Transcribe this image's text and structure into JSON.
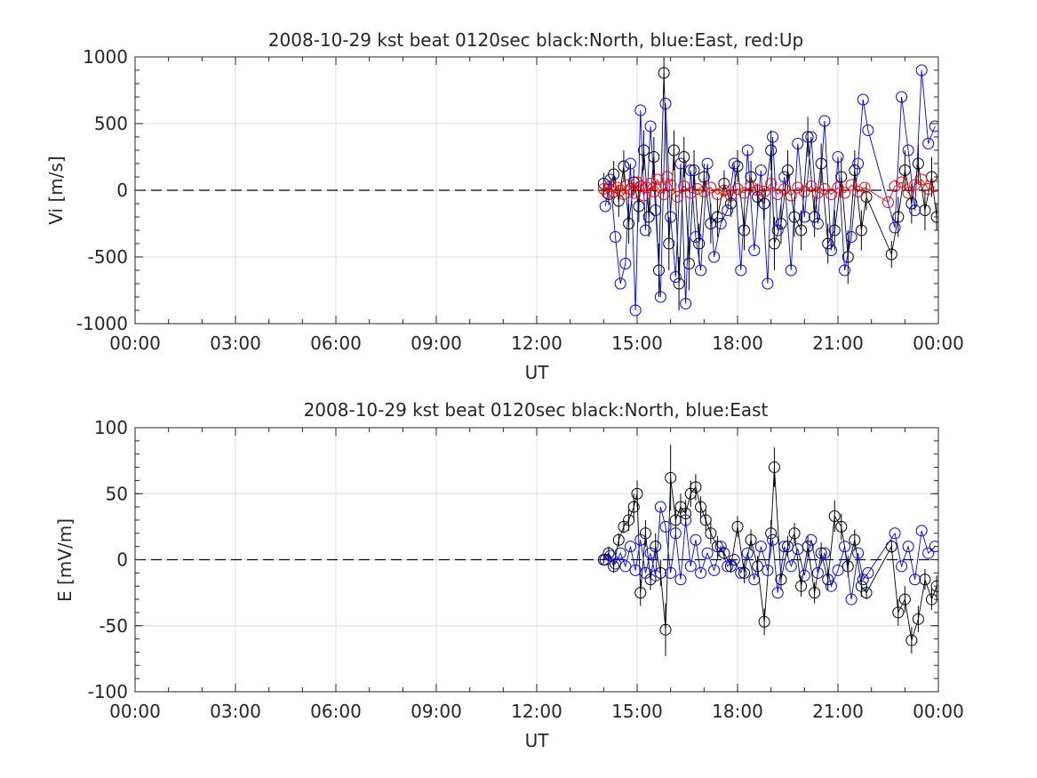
{
  "chart_data": [
    {
      "type": "scatter",
      "title": "2008-10-29 kst beat 0120sec black:North, blue:East, red:Up",
      "xlabel": "UT",
      "ylabel": "Vi [m/s]",
      "xlim": [
        0,
        24
      ],
      "ylim": [
        -1000,
        1000
      ],
      "xticks": [
        "00:00",
        "03:00",
        "06:00",
        "09:00",
        "12:00",
        "15:00",
        "18:00",
        "21:00",
        "00:00"
      ],
      "yticks": [
        "1000",
        "500",
        "0",
        "-500",
        "-1000"
      ],
      "grid": true,
      "reference_line": 0,
      "series": [
        {
          "color": "#000000",
          "x": [
            14.0,
            14.15,
            14.3,
            14.45,
            14.6,
            14.75,
            14.9,
            15.05,
            15.2,
            15.35,
            15.5,
            15.65,
            15.8,
            15.95,
            16.1,
            16.25,
            16.4,
            16.55,
            16.7,
            16.85,
            17.0,
            17.2,
            17.4,
            17.6,
            17.8,
            18.0,
            18.2,
            18.4,
            18.6,
            18.8,
            19.0,
            19.1,
            19.3,
            19.5,
            19.7,
            19.9,
            20.1,
            20.3,
            20.5,
            20.7,
            20.9,
            21.1,
            21.3,
            21.5,
            21.7,
            21.85,
            22.6,
            22.8,
            23.0,
            23.2,
            23.4,
            23.6,
            23.8,
            23.95
          ],
          "y": [
            50,
            -30,
            120,
            -80,
            180,
            -250,
            60,
            -120,
            300,
            -200,
            250,
            -600,
            880,
            -400,
            300,
            -700,
            250,
            -550,
            150,
            -400,
            100,
            -250,
            -200,
            50,
            -100,
            180,
            -300,
            100,
            -50,
            -100,
            300,
            -400,
            -250,
            150,
            -200,
            -300,
            400,
            -200,
            200,
            -400,
            -300,
            100,
            -500,
            150,
            -300,
            -50,
            -480,
            -200,
            150,
            -100,
            200,
            -150,
            100,
            -200
          ],
          "err": [
            80,
            80,
            100,
            120,
            120,
            150,
            100,
            120,
            150,
            150,
            150,
            200,
            150,
            200,
            150,
            200,
            150,
            200,
            150,
            150,
            100,
            150,
            150,
            100,
            100,
            120,
            150,
            120,
            100,
            120,
            150,
            200,
            150,
            150,
            150,
            150,
            150,
            150,
            150,
            150,
            150,
            150,
            200,
            150,
            150,
            100,
            100,
            150,
            150,
            150,
            150,
            150,
            150,
            100
          ]
        },
        {
          "color": "#0000ff",
          "x": [
            14.05,
            14.2,
            14.35,
            14.5,
            14.65,
            14.8,
            14.95,
            15.1,
            15.25,
            15.4,
            15.55,
            15.7,
            15.85,
            16.0,
            16.15,
            16.3,
            16.45,
            16.6,
            16.75,
            16.9,
            17.1,
            17.3,
            17.5,
            17.7,
            17.9,
            18.1,
            18.3,
            18.5,
            18.7,
            18.9,
            19.05,
            19.2,
            19.4,
            19.6,
            19.8,
            20.0,
            20.2,
            20.4,
            20.6,
            20.8,
            21.0,
            21.2,
            21.4,
            21.6,
            21.75,
            21.9,
            22.7,
            22.9,
            23.1,
            23.3,
            23.5,
            23.7,
            23.9
          ],
          "y": [
            -120,
            80,
            -350,
            -700,
            -550,
            200,
            -900,
            600,
            -300,
            480,
            -150,
            -800,
            650,
            -200,
            -650,
            200,
            -850,
            150,
            -350,
            -600,
            200,
            -500,
            -250,
            -150,
            200,
            -600,
            300,
            -450,
            150,
            -700,
            400,
            -300,
            100,
            -600,
            350,
            -200,
            400,
            -250,
            520,
            -450,
            250,
            -600,
            -350,
            200,
            680,
            450,
            -280,
            700,
            300,
            -150,
            900,
            350,
            480
          ]
        },
        {
          "color": "#ff0000",
          "x": [
            14.0,
            14.1,
            14.2,
            14.3,
            14.4,
            14.5,
            14.6,
            14.7,
            14.8,
            14.9,
            15.0,
            15.1,
            15.2,
            15.3,
            15.4,
            15.5,
            15.6,
            15.7,
            15.8,
            15.9,
            16.0,
            16.2,
            16.4,
            16.6,
            16.8,
            17.0,
            17.2,
            17.4,
            17.6,
            17.8,
            18.0,
            18.2,
            18.4,
            18.6,
            18.8,
            19.0,
            19.2,
            19.4,
            19.6,
            19.8,
            20.0,
            20.2,
            20.4,
            20.6,
            20.8,
            21.0,
            21.2,
            21.4,
            21.6,
            21.8,
            22.5,
            22.7,
            22.9,
            23.1,
            23.3,
            23.5,
            23.7,
            23.9
          ],
          "y": [
            10,
            -20,
            30,
            -10,
            20,
            0,
            -30,
            40,
            10,
            -20,
            60,
            30,
            -40,
            20,
            50,
            -10,
            80,
            20,
            -30,
            100,
            40,
            -50,
            30,
            -20,
            10,
            -10,
            20,
            -30,
            0,
            -40,
            10,
            -20,
            30,
            0,
            -10,
            50,
            -30,
            10,
            -40,
            20,
            -10,
            30,
            -20,
            10,
            -30,
            20,
            -20,
            40,
            -10,
            20,
            -90,
            30,
            60,
            -20,
            40,
            80,
            10,
            30
          ]
        }
      ]
    },
    {
      "type": "scatter",
      "title": "2008-10-29 kst beat 0120sec black:North, blue:East",
      "xlabel": "UT",
      "ylabel": "E [mV/m]",
      "xlim": [
        0,
        24
      ],
      "ylim": [
        -100,
        100
      ],
      "xticks": [
        "00:00",
        "03:00",
        "06:00",
        "09:00",
        "12:00",
        "15:00",
        "18:00",
        "21:00",
        "00:00"
      ],
      "yticks": [
        "100",
        "50",
        "0",
        "-50",
        "-100"
      ],
      "grid": true,
      "reference_line": 0,
      "series": [
        {
          "color": "#000000",
          "x": [
            14.0,
            14.15,
            14.3,
            14.45,
            14.6,
            14.75,
            14.9,
            15.0,
            15.1,
            15.25,
            15.4,
            15.55,
            15.7,
            15.85,
            16.0,
            16.15,
            16.3,
            16.45,
            16.6,
            16.75,
            16.9,
            17.05,
            17.2,
            17.4,
            17.6,
            17.8,
            18.0,
            18.2,
            18.4,
            18.6,
            18.8,
            19.0,
            19.1,
            19.3,
            19.5,
            19.7,
            19.9,
            20.1,
            20.3,
            20.5,
            20.7,
            20.9,
            21.1,
            21.3,
            21.5,
            21.7,
            21.85,
            22.6,
            22.8,
            23.0,
            23.2,
            23.4,
            23.6,
            23.8,
            23.95
          ],
          "y": [
            0,
            5,
            -5,
            15,
            25,
            30,
            40,
            50,
            -25,
            20,
            -15,
            10,
            -10,
            -53,
            62,
            30,
            40,
            35,
            50,
            55,
            40,
            30,
            20,
            10,
            5,
            -5,
            25,
            -10,
            15,
            -5,
            -47,
            20,
            70,
            -15,
            10,
            20,
            -20,
            10,
            -25,
            5,
            -15,
            33,
            25,
            -5,
            15,
            -20,
            -25,
            10,
            -40,
            -30,
            -61,
            -45,
            -15,
            -30,
            -20
          ],
          "err": [
            3,
            5,
            5,
            5,
            5,
            8,
            10,
            10,
            10,
            10,
            8,
            10,
            10,
            20,
            25,
            10,
            10,
            10,
            10,
            10,
            8,
            8,
            8,
            8,
            5,
            5,
            8,
            8,
            8,
            8,
            10,
            10,
            15,
            8,
            8,
            8,
            8,
            8,
            8,
            8,
            8,
            12,
            10,
            8,
            8,
            8,
            5,
            5,
            10,
            10,
            10,
            10,
            8,
            8,
            8
          ]
        },
        {
          "color": "#0000ff",
          "x": [
            14.05,
            14.2,
            14.35,
            14.5,
            14.65,
            14.8,
            14.95,
            15.1,
            15.25,
            15.4,
            15.55,
            15.7,
            15.85,
            16.0,
            16.15,
            16.3,
            16.45,
            16.6,
            16.75,
            16.9,
            17.1,
            17.3,
            17.5,
            17.7,
            17.9,
            18.1,
            18.3,
            18.5,
            18.7,
            18.9,
            19.05,
            19.2,
            19.4,
            19.6,
            19.8,
            20.0,
            20.2,
            20.4,
            20.6,
            20.8,
            21.0,
            21.2,
            21.4,
            21.6,
            21.75,
            21.9,
            22.7,
            22.9,
            23.1,
            23.3,
            23.5,
            23.7,
            23.9
          ],
          "y": [
            0,
            3,
            -3,
            5,
            -5,
            10,
            -8,
            15,
            -10,
            5,
            -12,
            40,
            25,
            -10,
            20,
            -15,
            30,
            -5,
            15,
            -10,
            5,
            -8,
            10,
            -5,
            0,
            -10,
            5,
            -15,
            10,
            -8,
            15,
            -25,
            10,
            -5,
            8,
            -12,
            15,
            -10,
            5,
            -20,
            -8,
            10,
            -30,
            5,
            -15,
            -10,
            20,
            -5,
            10,
            -15,
            22,
            5,
            10
          ]
        }
      ]
    }
  ]
}
